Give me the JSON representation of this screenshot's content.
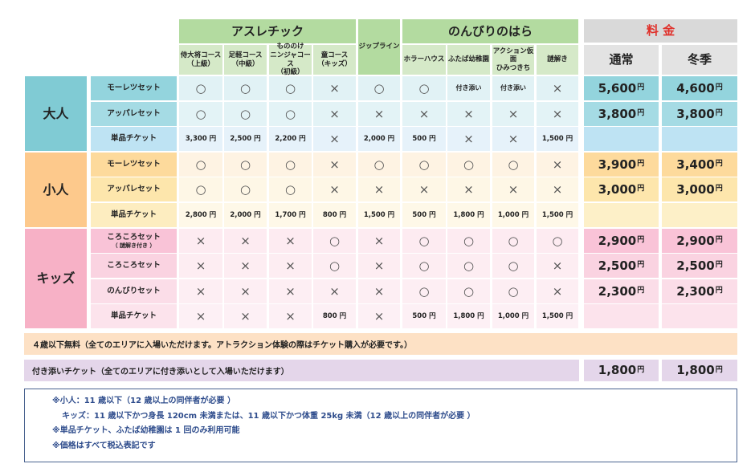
{
  "headers": {
    "athletic": "アスレチック",
    "athletic_courses": [
      "侍大将コース\n（上級）",
      "足軽コース\n（中級）",
      "もののけ\nニンジャコース\n（初級）",
      "童コース\n（キッズ）"
    ],
    "zipline": "ジップライン",
    "nonbiri": "のんびりのはら",
    "nonbiri_items": [
      "ホラーハウス",
      "ふたば幼稚園",
      "アクション仮面\nひみつきち",
      "謎解き"
    ],
    "price": "料 金",
    "price_cols": [
      "通常",
      "冬季"
    ]
  },
  "yen_unit": "円",
  "groups": [
    {
      "label": "大人",
      "colors": {
        "cat": "#80cbd4",
        "names": [
          "#93d4dd",
          "#a5dbe4",
          "#bee3f3"
        ],
        "cells": [
          "#e1f2f5",
          "#e3f3f6",
          "#e6f2fa"
        ],
        "prices": [
          "#93d4dd",
          "#a5dbe4",
          "#bee3f3"
        ]
      },
      "rows": [
        {
          "name": "モーレツセット",
          "cells": [
            "○",
            "○",
            "○",
            "×",
            "○",
            "○",
            "付き添い",
            "付き添い",
            "×"
          ],
          "prices": [
            "5,600",
            "4,600"
          ]
        },
        {
          "name": "アッパレセット",
          "cells": [
            "○",
            "○",
            "○",
            "×",
            "×",
            "×",
            "×",
            "×",
            "×"
          ],
          "prices": [
            "3,800",
            "3,800"
          ]
        },
        {
          "name": "単品チケット",
          "cells": [
            "3,300 円",
            "2,500 円",
            "2,200 円",
            "×",
            "2,000 円",
            "500 円",
            "×",
            "×",
            "1,500 円"
          ],
          "prices": [
            "",
            ""
          ]
        }
      ]
    },
    {
      "label": "小人",
      "colors": {
        "cat": "#fdc98c",
        "names": [
          "#fdda9c",
          "#fde6ac",
          "#fdedc0"
        ],
        "cells": [
          "#fef3e3",
          "#fef7e6",
          "#fef8e8"
        ],
        "prices": [
          "#fdda9c",
          "#fde6ac",
          "#fdf0c8"
        ]
      },
      "rows": [
        {
          "name": "モーレツセット",
          "cells": [
            "○",
            "○",
            "○",
            "×",
            "○",
            "○",
            "○",
            "○",
            "×"
          ],
          "prices": [
            "3,900",
            "3,400"
          ]
        },
        {
          "name": "アッパレセット",
          "cells": [
            "○",
            "○",
            "○",
            "×",
            "×",
            "×",
            "×",
            "×",
            "×"
          ],
          "prices": [
            "3,000",
            "3,000"
          ]
        },
        {
          "name": "単品チケット",
          "cells": [
            "2,800 円",
            "2,000 円",
            "1,700 円",
            "800 円",
            "1,500 円",
            "500 円",
            "1,800 円",
            "1,000 円",
            "1,500 円"
          ],
          "prices": [
            "",
            ""
          ]
        }
      ]
    },
    {
      "label": "キッズ",
      "colors": {
        "cat": "#f7b1c6",
        "names": [
          "#f9c3d7",
          "#fad3e1",
          "#fbdde8",
          "#fce3ec"
        ],
        "cells": [
          "#fdebf1",
          "#fdedf2",
          "#fdeef3",
          "#fdf0f5"
        ],
        "prices": [
          "#f9c3d7",
          "#fad3e1",
          "#fbdde8",
          "#fce3ec"
        ]
      },
      "rows": [
        {
          "name": "ころころセット",
          "sub": "（ 謎解き付き ）",
          "cells": [
            "×",
            "×",
            "×",
            "○",
            "×",
            "○",
            "○",
            "○",
            "○"
          ],
          "prices": [
            "2,900",
            "2,900"
          ]
        },
        {
          "name": "ころころセット",
          "cells": [
            "×",
            "×",
            "×",
            "○",
            "×",
            "○",
            "○",
            "○",
            "×"
          ],
          "prices": [
            "2,500",
            "2,500"
          ]
        },
        {
          "name": "のんびりセット",
          "cells": [
            "×",
            "×",
            "×",
            "×",
            "×",
            "○",
            "○",
            "○",
            "×"
          ],
          "prices": [
            "2,300",
            "2,300"
          ]
        },
        {
          "name": "単品チケット",
          "cells": [
            "×",
            "×",
            "×",
            "800 円",
            "×",
            "500 円",
            "1,800 円",
            "1,000 円",
            "1,500 円"
          ],
          "prices": [
            "",
            ""
          ]
        }
      ]
    }
  ],
  "free_note": "４歳以下無料（全てのエリアに入場いただけます。アトラクション体験の際はチケット購入が必要です。）",
  "attendant": {
    "label": "付き添いチケット（全てのエリアに付き添いとして入場いただけます）",
    "prices": [
      "1,800",
      "1,800"
    ]
  },
  "notes": [
    "※小人：11 歳以下（12 歳以上の同伴者が必要 ）",
    "キッズ：11 歳以下かつ身長 120cm 未満または、11 歳以下かつ体重 25kg 未満（12 歳以上の同伴者が必要 ）",
    "※単品チケット、ふたば幼稚園は 1 回のみ利用可能",
    "※価格はすべて税込表記です"
  ],
  "colors": {
    "header_green": "#b3dba0",
    "subheader_green": "#d5e9c8",
    "price_header": "#d9d9d9",
    "price_sub": "#e3e3e3",
    "free_band": "#fde1c5",
    "attendant_band": "#e4d6ea",
    "notes_text": "#2e4c8c"
  }
}
